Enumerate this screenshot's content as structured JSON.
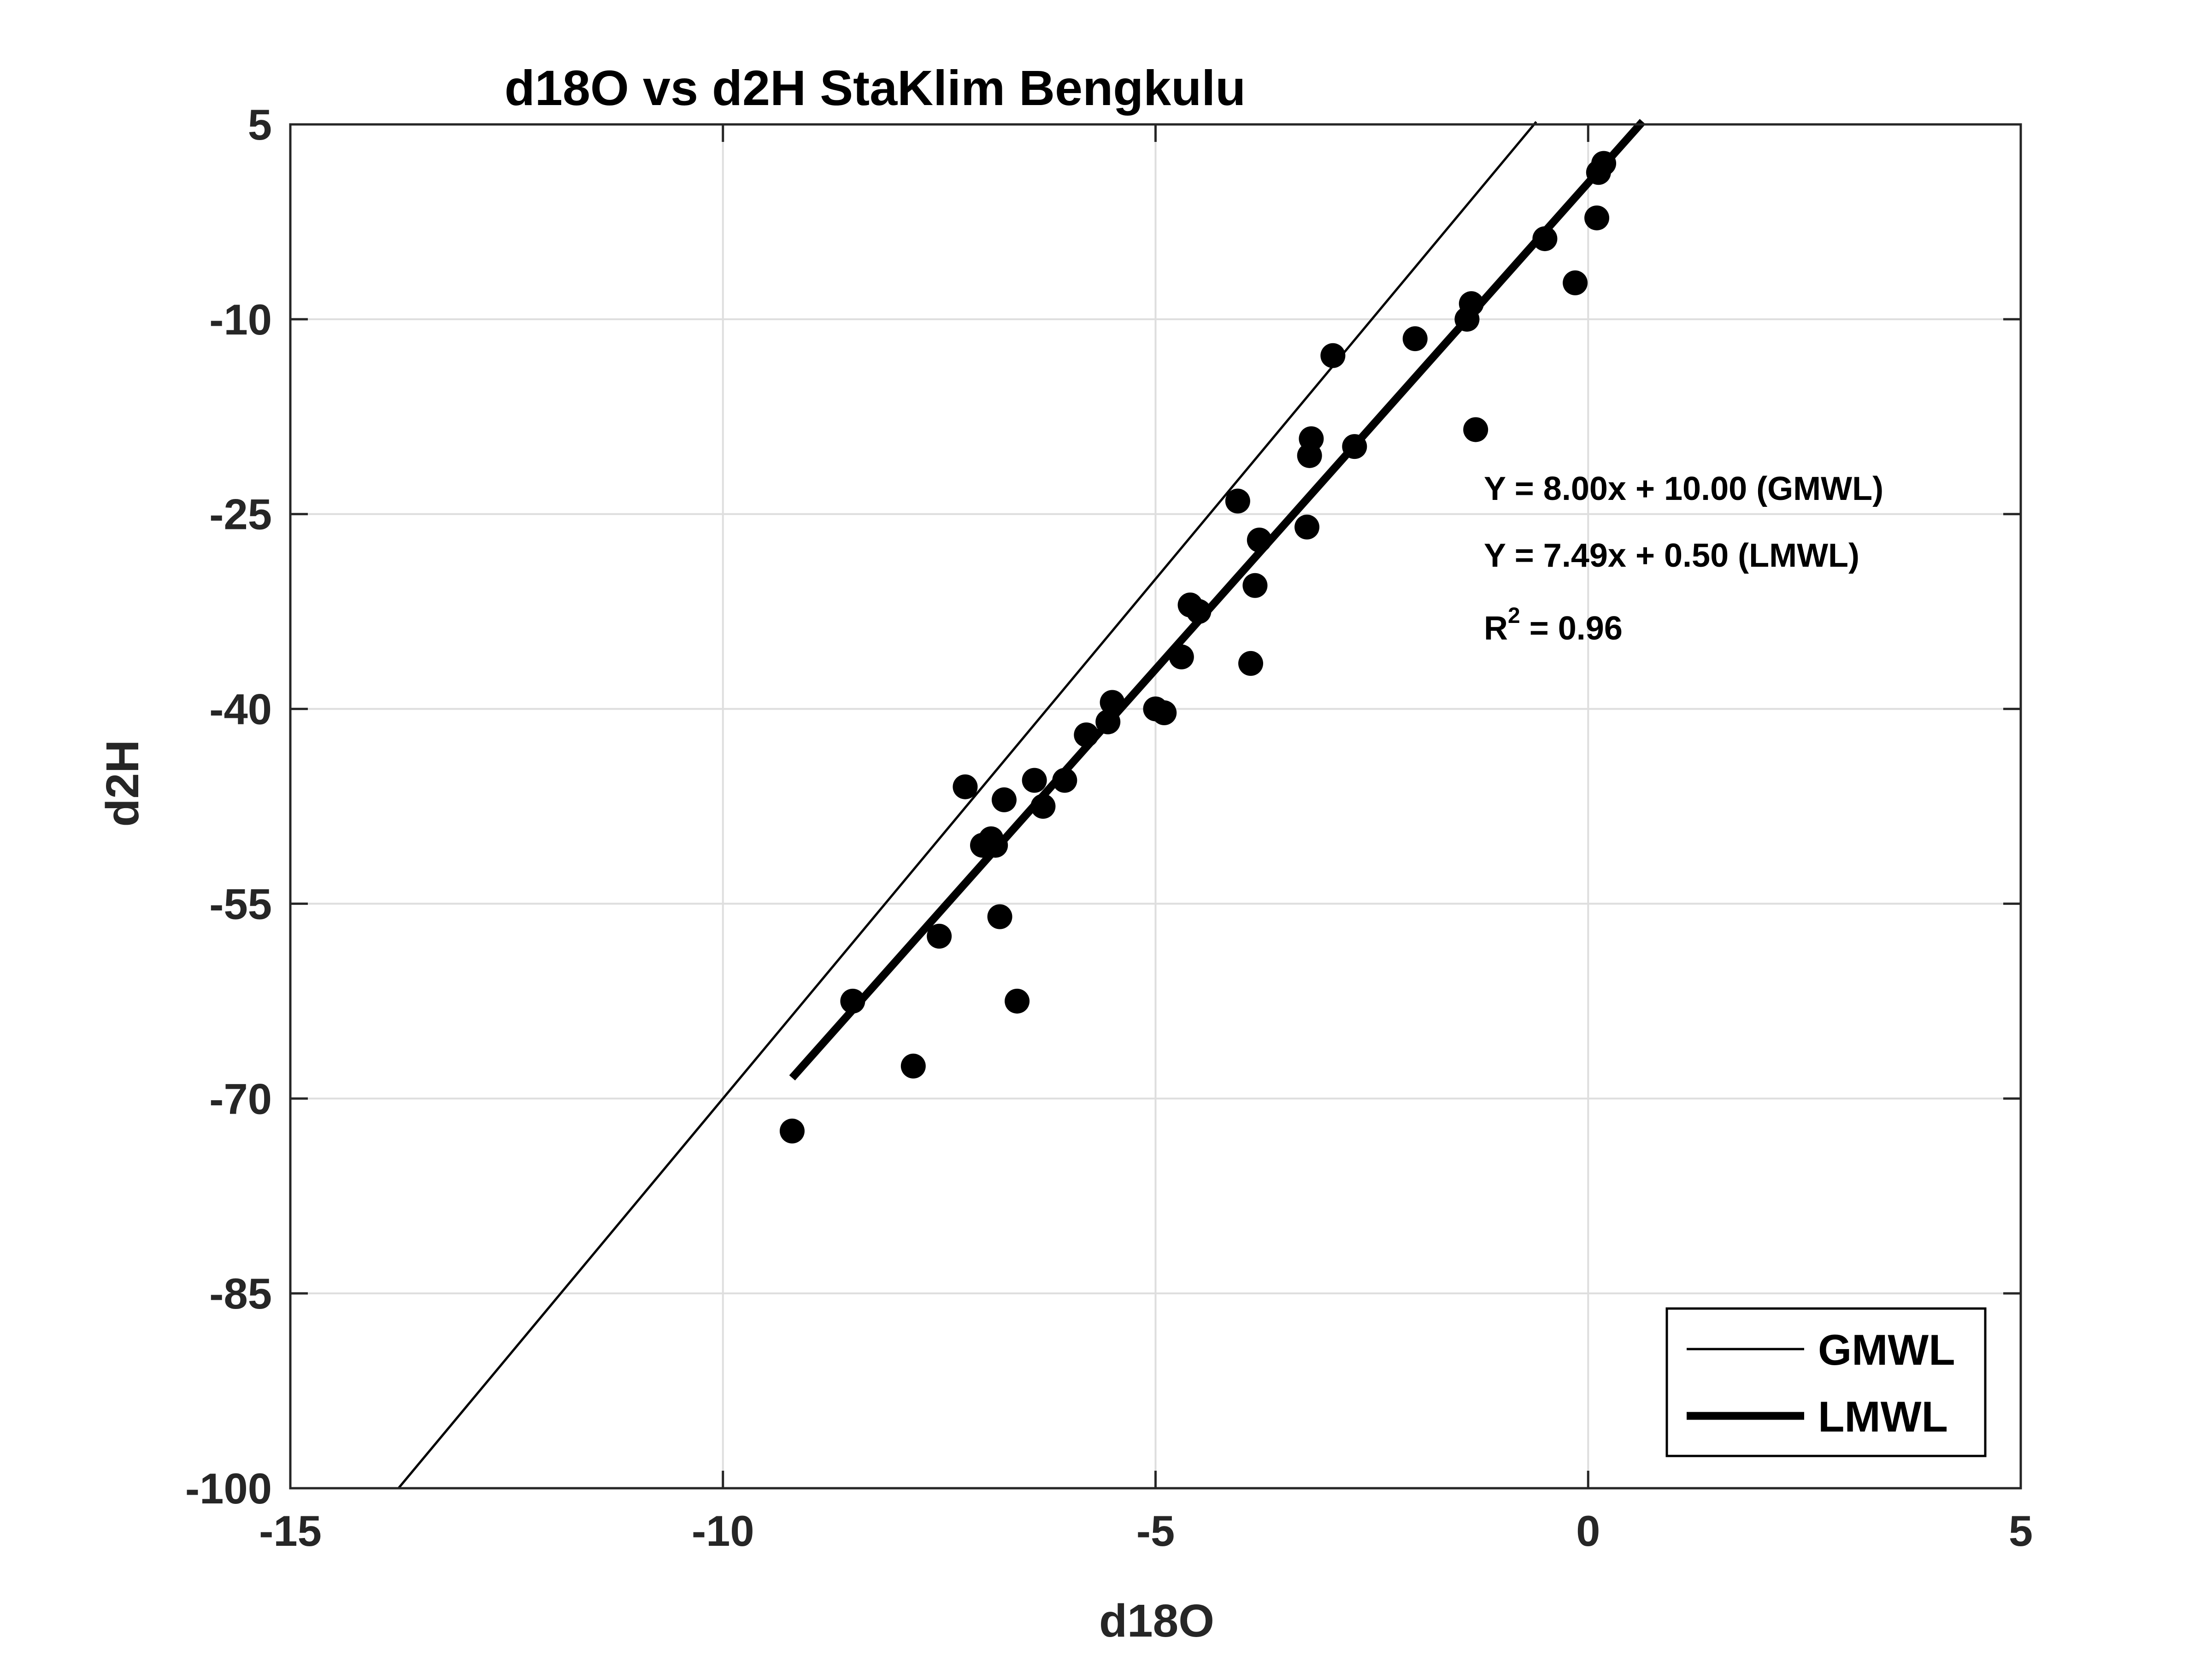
{
  "chart_data": {
    "type": "scatter",
    "title": "d18O vs d2H StaKlim Bengkulu",
    "xlabel": "d18O",
    "ylabel": "d2H",
    "xlim": [
      -15,
      5
    ],
    "ylim": [
      -100,
      5
    ],
    "xticks": [
      -15,
      -10,
      -5,
      0,
      5
    ],
    "xtick_labels": [
      "-15",
      "-10",
      "-5",
      "0",
      "5"
    ],
    "yticks": [
      -100,
      -85,
      -70,
      -55,
      -40,
      -25,
      -10,
      5
    ],
    "ytick_labels": [
      "-100",
      "-85",
      "-70",
      "-55",
      "-40",
      "-25",
      "-10",
      "5"
    ],
    "grid": true,
    "legend_position": "bottom-right",
    "annotations": {
      "gmwl_eq": "Y = 8.00x + 10.00 (GMWL)",
      "lmwl_eq": "Y = 7.49x + 0.50 (LMWL)",
      "r2_prefix": "R",
      "r2_sup": "2",
      "r2_suffix": " = 0.96"
    },
    "lines": [
      {
        "name": "GMWL",
        "slope": 8.0,
        "intercept": 10.0,
        "x_range": [
          -13.75,
          -0.6
        ],
        "width": "thin",
        "color": "#000000"
      },
      {
        "name": "LMWL",
        "slope": 7.49,
        "intercept": 0.5,
        "x_range": [
          -9.2,
          0.63
        ],
        "width": "thick",
        "color": "#000000"
      }
    ],
    "points": {
      "name": "samples",
      "color": "#000000",
      "x": [
        -9.2,
        -8.5,
        -7.8,
        -7.5,
        -7.2,
        -7.0,
        -6.9,
        -6.8,
        -6.85,
        -6.75,
        -6.6,
        -6.4,
        -6.3,
        -6.05,
        -5.8,
        -5.55,
        -5.5,
        -5.0,
        -4.9,
        -4.7,
        -4.6,
        -4.5,
        -4.05,
        -3.9,
        -3.85,
        -3.8,
        -3.25,
        -3.2,
        -3.22,
        -2.95,
        -2.7,
        -2.0,
        -1.4,
        -1.35,
        -1.3,
        -0.5,
        -0.15,
        0.1,
        0.12,
        0.18
      ],
      "y": [
        -72.5,
        -62.5,
        -67.5,
        -57.5,
        -46,
        -50.5,
        -50,
        -56,
        -50.5,
        -47,
        -62.5,
        -45.5,
        -47.5,
        -45.5,
        -42,
        -41,
        -39.5,
        -40,
        -40.3,
        -36,
        -32,
        -32.5,
        -24,
        -36.5,
        -30.5,
        -27,
        -26,
        -19.2,
        -20.5,
        -12.8,
        -19.8,
        -11.5,
        -10,
        -8.8,
        -18.5,
        -3.8,
        -7.2,
        -2.2,
        1.3,
        2.0
      ]
    }
  }
}
